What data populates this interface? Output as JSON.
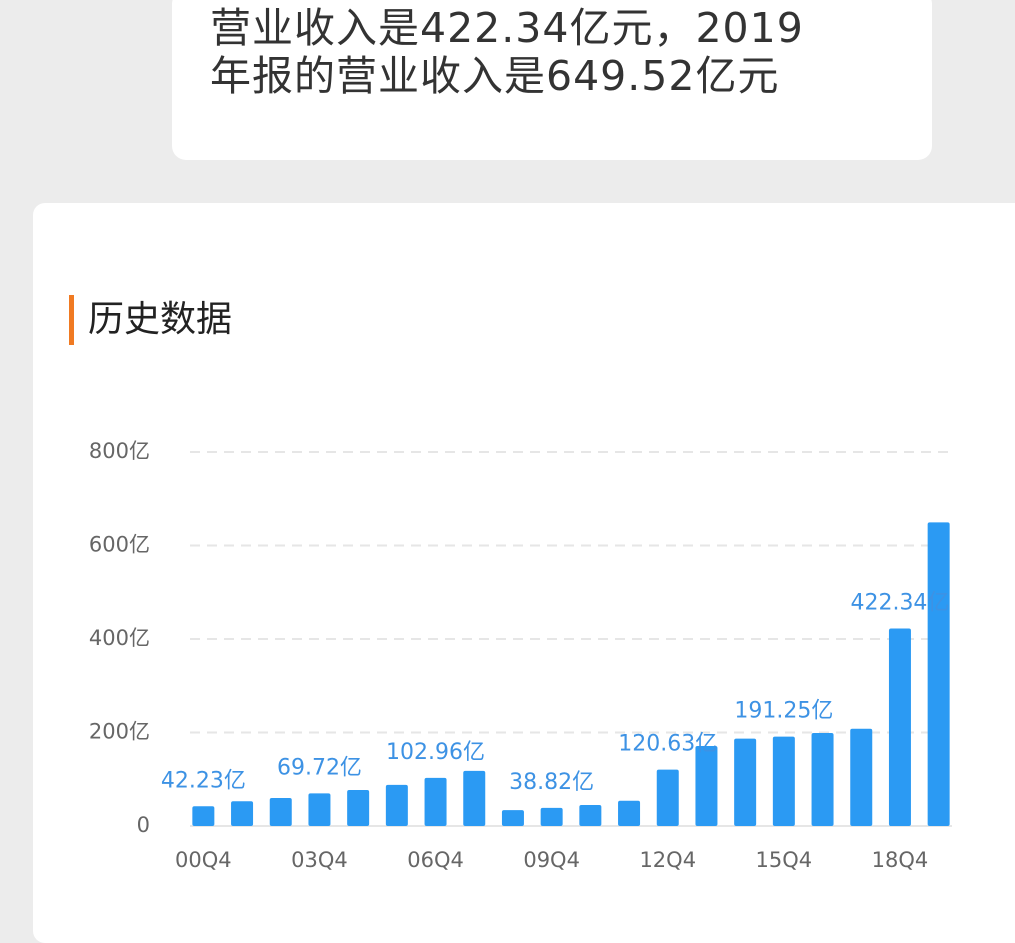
{
  "message": {
    "lines": [
      "营业收入是422.34亿元，2019",
      "年报的营业收入是649.52亿元"
    ]
  },
  "chart_data": {
    "type": "bar",
    "title": "历史数据",
    "categories": [
      "00Q4",
      null,
      null,
      "03Q4",
      null,
      null,
      "06Q4",
      null,
      null,
      "09Q4",
      null,
      null,
      "12Q4",
      null,
      null,
      "15Q4",
      null,
      null,
      "18Q4",
      null
    ],
    "values": [
      42.23,
      53,
      60,
      69.72,
      77,
      88,
      102.96,
      118,
      34,
      38.82,
      45,
      54,
      120.63,
      171,
      187,
      191.25,
      199,
      208,
      422.34,
      649.52
    ],
    "value_labels": [
      "42.23亿",
      null,
      null,
      "69.72亿",
      null,
      null,
      "102.96亿",
      null,
      null,
      "38.82亿",
      null,
      null,
      "120.63亿",
      null,
      null,
      "191.25亿",
      null,
      null,
      "422.34亿",
      null
    ],
    "color": "#2b9af3",
    "label_color": "#3d92e4",
    "ylim": [
      0,
      800
    ],
    "yticks": [
      {
        "value": 0,
        "label": "0"
      },
      {
        "value": 200,
        "label": "200亿"
      },
      {
        "value": 400,
        "label": "400亿"
      },
      {
        "value": 600,
        "label": "600亿"
      },
      {
        "value": 800,
        "label": "800亿"
      }
    ],
    "grid": true
  }
}
